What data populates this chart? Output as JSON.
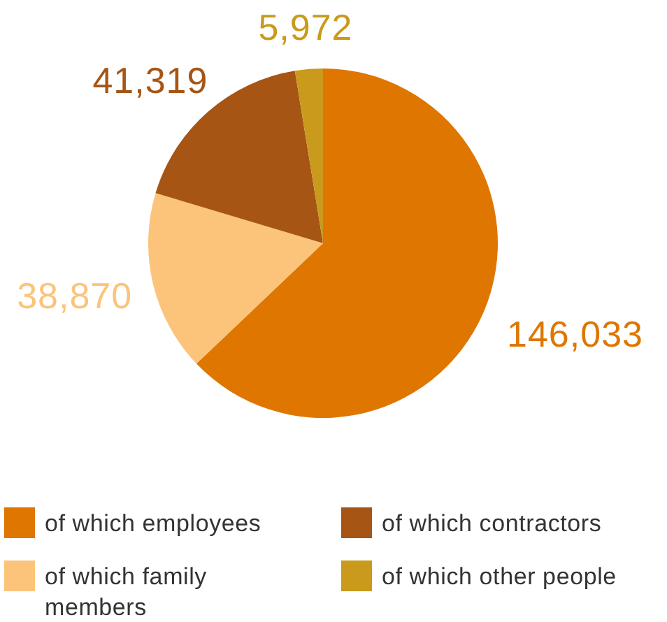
{
  "chart_data": {
    "type": "pie",
    "categories": [
      "of which employees",
      "of which family members",
      "of which contractors",
      "of which other people"
    ],
    "values": [
      146033,
      38870,
      41319,
      5972
    ],
    "colors": [
      "#df7600",
      "#fbc47a",
      "#a65514",
      "#c99a1c"
    ],
    "value_labels": [
      "146,033",
      "38,870",
      "41,319",
      "5,972"
    ],
    "legend": "bottom"
  }
}
